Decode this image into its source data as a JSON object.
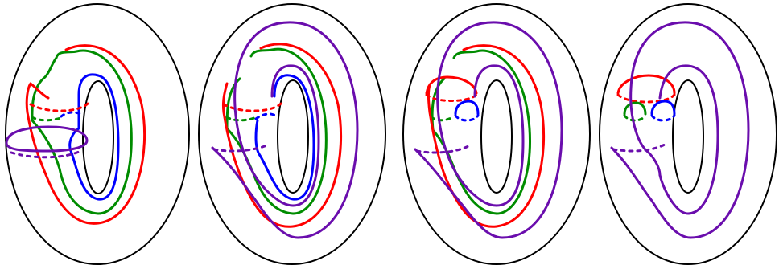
{
  "figure": {
    "panels": [
      {
        "id": "panel-1",
        "curves": [
          "green",
          "red",
          "blue",
          "purple"
        ]
      },
      {
        "id": "panel-2",
        "curves": [
          "green",
          "red",
          "blue",
          "purple"
        ]
      },
      {
        "id": "panel-3",
        "curves": [
          "green",
          "red",
          "blue",
          "purple"
        ]
      },
      {
        "id": "panel-4",
        "curves": [
          "green",
          "red",
          "blue",
          "purple"
        ]
      }
    ],
    "colors": {
      "outline": "#000000",
      "red": "#ff0000",
      "green": "#008c00",
      "blue": "#0000ff",
      "purple": "#6a0dad"
    }
  }
}
